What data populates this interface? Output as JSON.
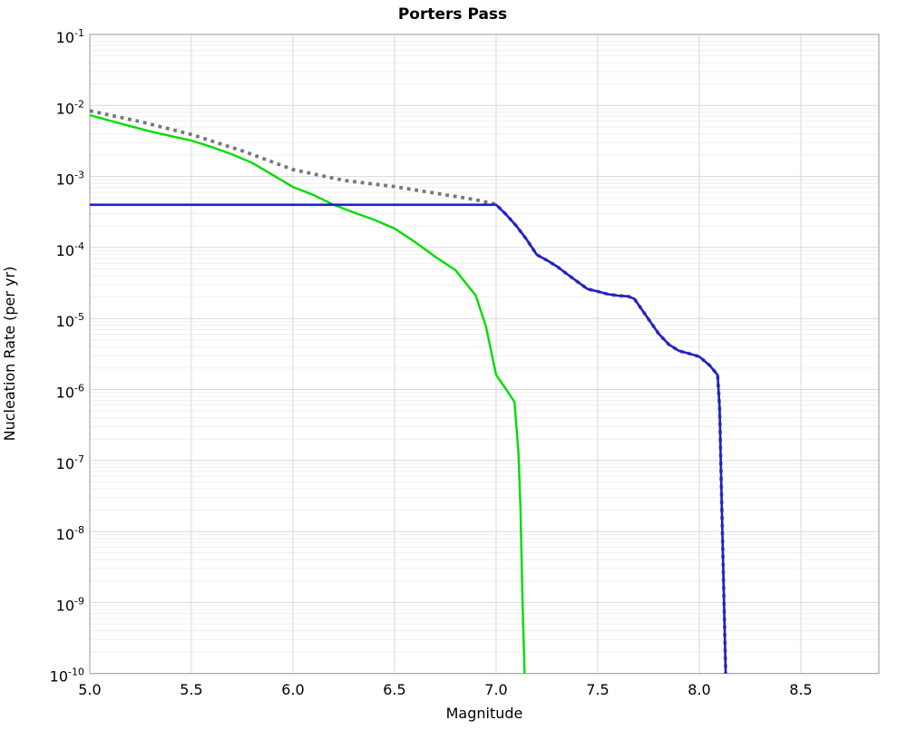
{
  "title": "Porters Pass",
  "axes": {
    "x_label": "Magnitude",
    "y_label": "Nucleation Rate (per yr)"
  },
  "chart_data": {
    "type": "line",
    "title": "Porters Pass",
    "xlabel": "Magnitude",
    "ylabel": "Nucleation Rate (per yr)",
    "xlim": [
      5.0,
      8.88
    ],
    "ylim": [
      1e-10,
      0.1
    ],
    "yscale": "log",
    "grid": true,
    "legend": "none",
    "x_ticks": [
      "5.0",
      "5.5",
      "6.0",
      "6.5",
      "7.0",
      "7.5",
      "8.0",
      "8.5"
    ],
    "x_tick_values": [
      5.0,
      5.5,
      6.0,
      6.5,
      7.0,
      7.5,
      8.0,
      8.5
    ],
    "y_tick_exponents": [
      -1,
      -2,
      -3,
      -4,
      -5,
      -6,
      -7,
      -8,
      -9,
      -10
    ],
    "colors": {
      "grid_major": "#d8d8d8",
      "grid_minor": "#efefef",
      "frame": "#9a9a9a",
      "background": "#ffffff"
    },
    "series": [
      {
        "name": "gray-dotted-total-rate",
        "color": "#777777",
        "style": "dotted",
        "width": 3.8,
        "continue_with": "blue-solid-rate",
        "points": [
          [
            5.0,
            0.0084
          ],
          [
            5.25,
            0.0059
          ],
          [
            5.5,
            0.0039
          ],
          [
            5.75,
            0.0023
          ],
          [
            6.0,
            0.00125
          ],
          [
            6.25,
            0.00088
          ],
          [
            6.5,
            0.00072
          ],
          [
            6.75,
            0.00055
          ],
          [
            6.9,
            0.00047
          ],
          [
            7.0,
            0.000405
          ]
        ]
      },
      {
        "name": "green-solid-rate",
        "color": "#00dd00",
        "style": "solid",
        "width": 2.4,
        "points": [
          [
            5.0,
            0.0073
          ],
          [
            5.1,
            0.0061
          ],
          [
            5.2,
            0.0051
          ],
          [
            5.3,
            0.0043
          ],
          [
            5.4,
            0.0037
          ],
          [
            5.5,
            0.0032
          ],
          [
            5.6,
            0.0026
          ],
          [
            5.7,
            0.00205
          ],
          [
            5.8,
            0.00155
          ],
          [
            5.9,
            0.00105
          ],
          [
            6.0,
            0.00071
          ],
          [
            6.1,
            0.00055
          ],
          [
            6.2,
            0.0004
          ],
          [
            6.3,
            0.00031
          ],
          [
            6.4,
            0.000245
          ],
          [
            6.5,
            0.000185
          ],
          [
            6.6,
            0.00012
          ],
          [
            6.7,
            7.4e-05
          ],
          [
            6.8,
            4.8e-05
          ],
          [
            6.9,
            2.1e-05
          ],
          [
            6.95,
            7.7e-06
          ],
          [
            7.0,
            1.6e-06
          ],
          [
            7.05,
            1e-06
          ],
          [
            7.09,
            6.7e-07
          ],
          [
            7.11,
            1.3e-07
          ],
          [
            7.12,
            2e-08
          ],
          [
            7.13,
            1e-09
          ],
          [
            7.14,
            1e-10
          ]
        ]
      },
      {
        "name": "blue-solid-rate",
        "color": "#1f1fcc",
        "style": "solid",
        "width": 2.6,
        "points": [
          [
            5.0,
            0.0004
          ],
          [
            7.0,
            0.0004
          ],
          [
            7.05,
            0.00029
          ],
          [
            7.1,
            0.0002
          ],
          [
            7.15,
            0.00013
          ],
          [
            7.2,
            7.9e-05
          ],
          [
            7.25,
            6.6e-05
          ],
          [
            7.3,
            5.4e-05
          ],
          [
            7.35,
            4.2e-05
          ],
          [
            7.4,
            3.3e-05
          ],
          [
            7.45,
            2.6e-05
          ],
          [
            7.5,
            2.4e-05
          ],
          [
            7.55,
            2.2e-05
          ],
          [
            7.6,
            2.1e-05
          ],
          [
            7.65,
            2.05e-05
          ],
          [
            7.68,
            1.9e-05
          ],
          [
            7.75,
            9.8e-06
          ],
          [
            7.8,
            6.1e-06
          ],
          [
            7.85,
            4.3e-06
          ],
          [
            7.9,
            3.5e-06
          ],
          [
            7.95,
            3.2e-06
          ],
          [
            8.0,
            2.9e-06
          ],
          [
            8.05,
            2.2e-06
          ],
          [
            8.09,
            1.6e-06
          ],
          [
            8.1,
            5.5e-07
          ],
          [
            8.11,
            2.9e-08
          ],
          [
            8.12,
            1.6e-09
          ],
          [
            8.13,
            1e-10
          ]
        ]
      }
    ]
  }
}
